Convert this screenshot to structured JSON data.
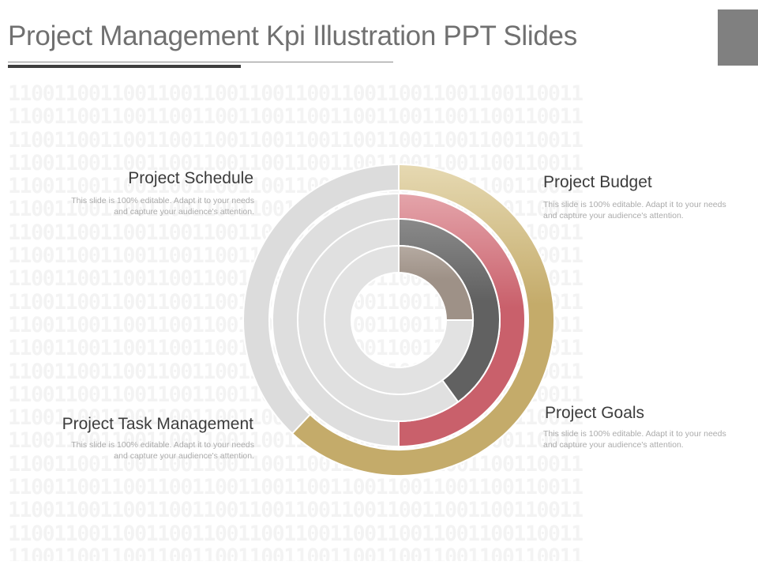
{
  "title": "Project Management Kpi Illustration PPT Slides",
  "background_binary_row": "11001100110011001100110011001100110011001100110011",
  "background_binary_rows": 21,
  "sections": [
    {
      "label": "Project Schedule",
      "description": "This slide is 100% editable. Adapt it to your needs and capture your audience's attention."
    },
    {
      "label": "Project Budget",
      "description": "This slide is 100% editable. Adapt it to your needs and capture your audience's attention."
    },
    {
      "label": "Project Task Management",
      "description": "This slide is 100% editable. Adapt it to your needs and capture your audience's attention."
    },
    {
      "label": "Project Goals",
      "description": "This slide is 100% editable. Adapt it to your needs and capture your audience's attention."
    }
  ],
  "rings": [
    {
      "name": "outer-ring",
      "fraction": 0.62,
      "color": "#c4ab6a",
      "highlight": "#e6d9b2",
      "track": "#dcdcdc"
    },
    {
      "name": "second-ring",
      "fraction": 0.5,
      "color": "#c9606b",
      "highlight": "#e4a4aa",
      "track": "#dedede"
    },
    {
      "name": "third-ring",
      "fraction": 0.4,
      "color": "#616161",
      "highlight": "#8a8a8a",
      "track": "#e0e0e0"
    },
    {
      "name": "inner-ring",
      "fraction": 0.25,
      "color": "#9e9187",
      "highlight": "#b5aaa1",
      "track": "#e2e2e2"
    }
  ]
}
